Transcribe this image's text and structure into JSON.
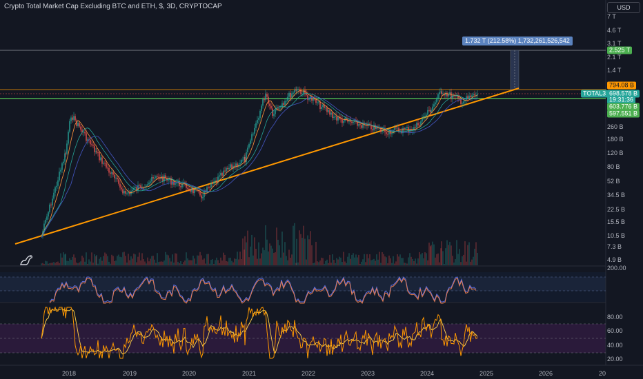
{
  "chart_title": "Crypto Total Market Cap Excluding BTC and ETH, $, 3D, CRYPTOCAP",
  "currency": "USD",
  "price_axis": [
    "7 T",
    "4.6 T",
    "3.1 T",
    "2.1 T",
    "1.4 T",
    "260 B",
    "180 B",
    "120 B",
    "80 B",
    "52 B",
    "34.5 B",
    "22.5 B",
    "15.5 B",
    "10.5 B",
    "7.3 B",
    "4.9 B"
  ],
  "stoch_axis": [
    "200.00"
  ],
  "rsi_axis": [
    "80.00",
    "60.00",
    "40.00",
    "20.00"
  ],
  "time_axis": [
    "2018",
    "2019",
    "2020",
    "2021",
    "2022",
    "2023",
    "2024",
    "2025",
    "2026",
    "20"
  ],
  "tags": {
    "target": "2.525 T",
    "level": "794.08 B",
    "symbol": "TOTAL3",
    "price": "698.578 B",
    "countdown": "19:31:36",
    "ma1": "603.776 B",
    "ma2": "597.551 B"
  },
  "measure_label": "1.732 T (212.58%) 1,732,261,526,542",
  "colors": {
    "background": "#131722",
    "up": "#26a69a",
    "down": "#ef5350",
    "trendline": "#ff9800",
    "green_line": "#4caf50",
    "stoch_line": "#e97c4b",
    "stoch_signal": "#5b6ee1",
    "rsi_line": "#ff9800"
  },
  "chart_data": {
    "type": "line",
    "title": "Crypto Total Market Cap Excluding BTC and ETH, $, 3D, CRYPTOCAP",
    "x": [
      "2017-08",
      "2017-12",
      "2018-01",
      "2018-06",
      "2018-12",
      "2019-06",
      "2019-12",
      "2020-03",
      "2020-08",
      "2020-12",
      "2021-05",
      "2021-07",
      "2021-11",
      "2022-06",
      "2022-12",
      "2023-06",
      "2023-12",
      "2024-03",
      "2024-08",
      "2024-11"
    ],
    "series": [
      {
        "name": "TOTAL3",
        "values": [
          10.5,
          120,
          380,
          120,
          36,
          60,
          45,
          34,
          75,
          100,
          720,
          400,
          830,
          330,
          230,
          250,
          450,
          760,
          560,
          698.6
        ]
      }
    ],
    "ylabel": "",
    "yscale": "log",
    "units": "B USD",
    "levels": {
      "horizontal_target": "2.525 T",
      "horizontal_resistance": "794.08 B",
      "horizontal_support": "597.551 B"
    }
  }
}
